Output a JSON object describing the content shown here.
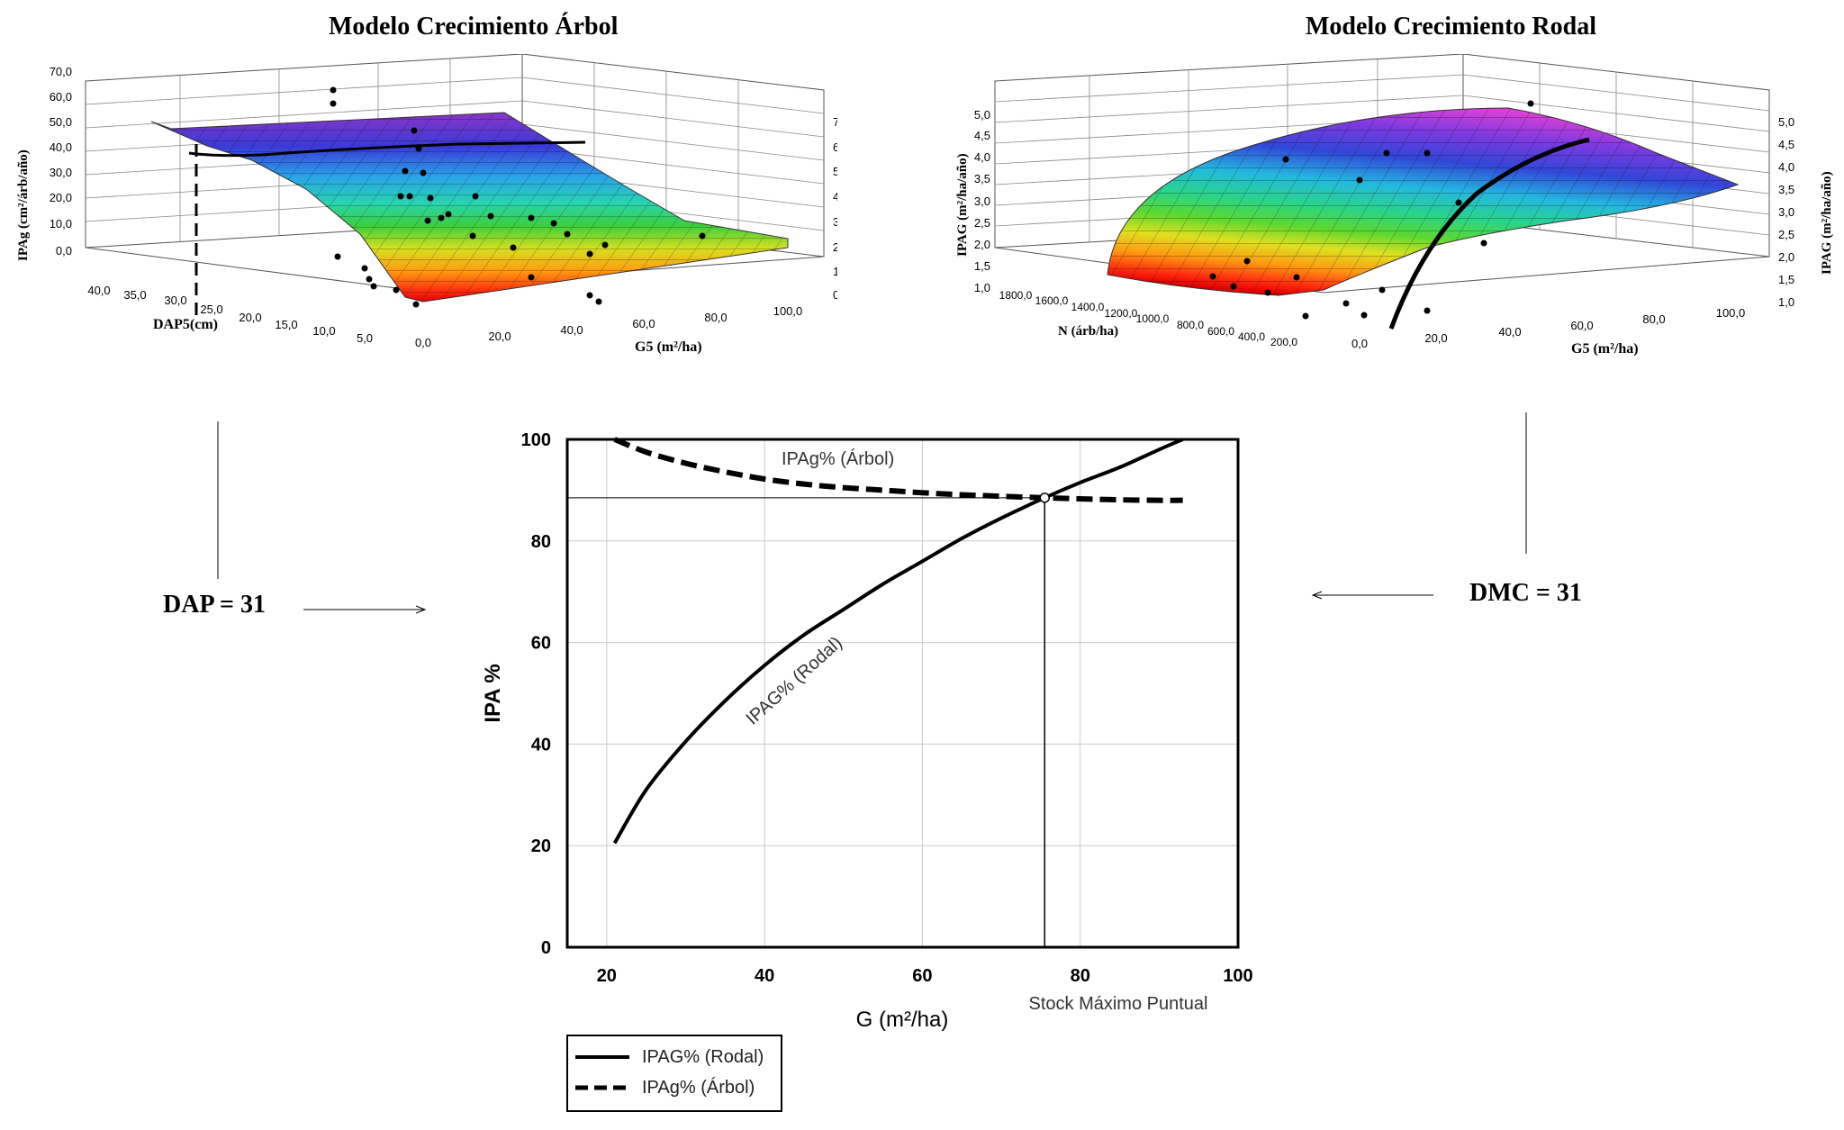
{
  "left_panel": {
    "title": "Modelo Crecimiento Árbol",
    "z_axis_label": "IPAg (cm²/árb/año)",
    "z_ticks": [
      "0,0",
      "10,0",
      "20,0",
      "30,0",
      "40,0",
      "50,0",
      "60,0",
      "70,0"
    ],
    "x_axis_label": "DAP5(cm)",
    "x_ticks": [
      "40,0",
      "35,0",
      "30,0",
      "25,0",
      "20,0",
      "15,0",
      "10,0",
      "5,0"
    ],
    "y_axis_label": "G5 (m²/ha)",
    "y_ticks": [
      "0,0",
      "20,0",
      "40,0",
      "60,0",
      "80,0",
      "100,0"
    ]
  },
  "right_panel": {
    "title": "Modelo Crecimiento Rodal",
    "z_axis_label": "IPAG (m²/ha/año)",
    "z_ticks": [
      "1,0",
      "1,5",
      "2,0",
      "2,5",
      "3,0",
      "3,5",
      "4,0",
      "4,5",
      "5,0"
    ],
    "x_axis_label": "N (árb/ha)",
    "x_ticks": [
      "1800,0",
      "1600,0",
      "1400,0",
      "1200,0",
      "1000,0",
      "800,0",
      "600,0",
      "400,0",
      "200,0"
    ],
    "y_axis_label": "G5 (m²/ha)",
    "y_ticks": [
      "0,0",
      "20,0",
      "40,0",
      "60,0",
      "80,0",
      "100,0"
    ]
  },
  "annotations": {
    "dap": "DAP = 31",
    "dmc": "DMC = 31"
  },
  "chart_data": {
    "type": "line",
    "title": "",
    "xlabel": "G (m²/ha)",
    "ylabel": "IPA %",
    "xlim": [
      15,
      100
    ],
    "ylim": [
      0,
      100
    ],
    "x_ticks": [
      20,
      40,
      60,
      80,
      100
    ],
    "y_ticks": [
      0,
      20,
      40,
      60,
      80,
      100
    ],
    "grid": true,
    "series": [
      {
        "name": "IPAG% (Rodal)",
        "style": "solid",
        "x": [
          21,
          25,
          30,
          35,
          40,
          45,
          50,
          55,
          60,
          65,
          70,
          75.5,
          80,
          85,
          90,
          93
        ],
        "y": [
          20.5,
          31,
          40.5,
          48.5,
          55.5,
          61.5,
          66.5,
          71.5,
          76,
          80.5,
          84.5,
          88.5,
          91.5,
          94.5,
          98,
          100
        ]
      },
      {
        "name": "IPAg% (Árbol)",
        "style": "dashed",
        "x": [
          21,
          25,
          30,
          35,
          40,
          45,
          50,
          55,
          60,
          65,
          70,
          75.5,
          80,
          85,
          90,
          93
        ],
        "y": [
          100,
          97.5,
          95.3,
          93.6,
          92.2,
          91.2,
          90.5,
          90,
          89.5,
          89.1,
          88.8,
          88.5,
          88.3,
          88.1,
          88,
          88
        ]
      }
    ],
    "series_labels": [
      "IPAg% (Árbol)",
      "IPAG% (Rodal)"
    ],
    "intersection": {
      "x": 75.5,
      "y": 88.5
    },
    "annotations": [
      "Stock Máximo Puntual"
    ]
  }
}
